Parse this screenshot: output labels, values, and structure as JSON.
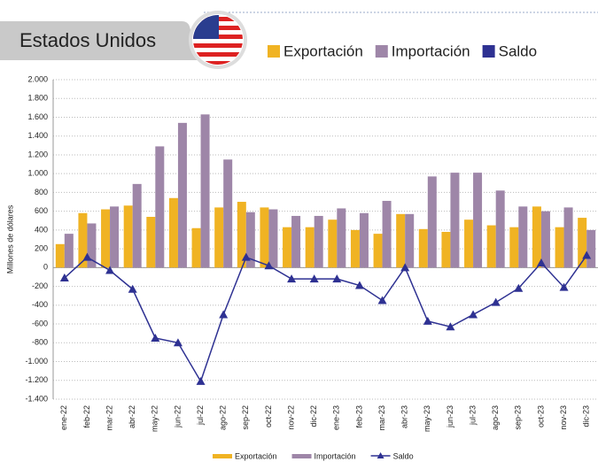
{
  "chart_data": {
    "type": "bar_line",
    "title": "Estados Unidos",
    "y_label": "Millones de dólares",
    "categories": [
      "ene-22",
      "feb-22",
      "mar-22",
      "abr-22",
      "may-22",
      "jun-22",
      "jul-22",
      "ago-22",
      "sep-22",
      "oct-22",
      "nov-22",
      "dic-22",
      "ene-23",
      "feb-23",
      "mar-23",
      "abr-23",
      "may-23",
      "jun-23",
      "jul-23",
      "ago-23",
      "sep-23",
      "oct-23",
      "nov-23",
      "dic-23"
    ],
    "series": [
      {
        "name": "Exportación",
        "color": "#f0b323",
        "kind": "bar",
        "values": [
          250,
          580,
          620,
          660,
          540,
          740,
          420,
          640,
          700,
          640,
          430,
          430,
          510,
          400,
          360,
          570,
          410,
          380,
          510,
          450,
          430,
          650,
          430,
          530
        ]
      },
      {
        "name": "Importación",
        "color": "#9e86a8",
        "kind": "bar",
        "values": [
          360,
          470,
          650,
          890,
          1290,
          1540,
          1630,
          1150,
          590,
          620,
          550,
          550,
          630,
          580,
          710,
          570,
          970,
          1010,
          1010,
          820,
          650,
          600,
          640,
          400
        ]
      },
      {
        "name": "Saldo",
        "color": "#2e3192",
        "kind": "line",
        "values": [
          -110,
          110,
          -30,
          -230,
          -750,
          -800,
          -1210,
          -500,
          110,
          20,
          -120,
          -120,
          -120,
          -190,
          -350,
          0,
          -570,
          -630,
          -500,
          -370,
          -220,
          50,
          -210,
          130
        ]
      }
    ],
    "ylim": [
      -1400,
      2000
    ],
    "yticks": [
      {
        "value": -1400,
        "label": "-1.400"
      },
      {
        "value": -1200,
        "label": "-1.200"
      },
      {
        "value": -1000,
        "label": "-1.000"
      },
      -800,
      -600,
      -400,
      -200,
      0,
      200,
      400,
      600,
      800,
      {
        "value": 1000,
        "label": "1.000"
      },
      {
        "value": 1200,
        "label": "1.200"
      },
      {
        "value": 1400,
        "label": "1.400"
      },
      {
        "value": 1600,
        "label": "1.600"
      },
      {
        "value": 1800,
        "label": "1.800"
      },
      {
        "value": 2000,
        "label": "2.000"
      }
    ],
    "grid": true
  }
}
